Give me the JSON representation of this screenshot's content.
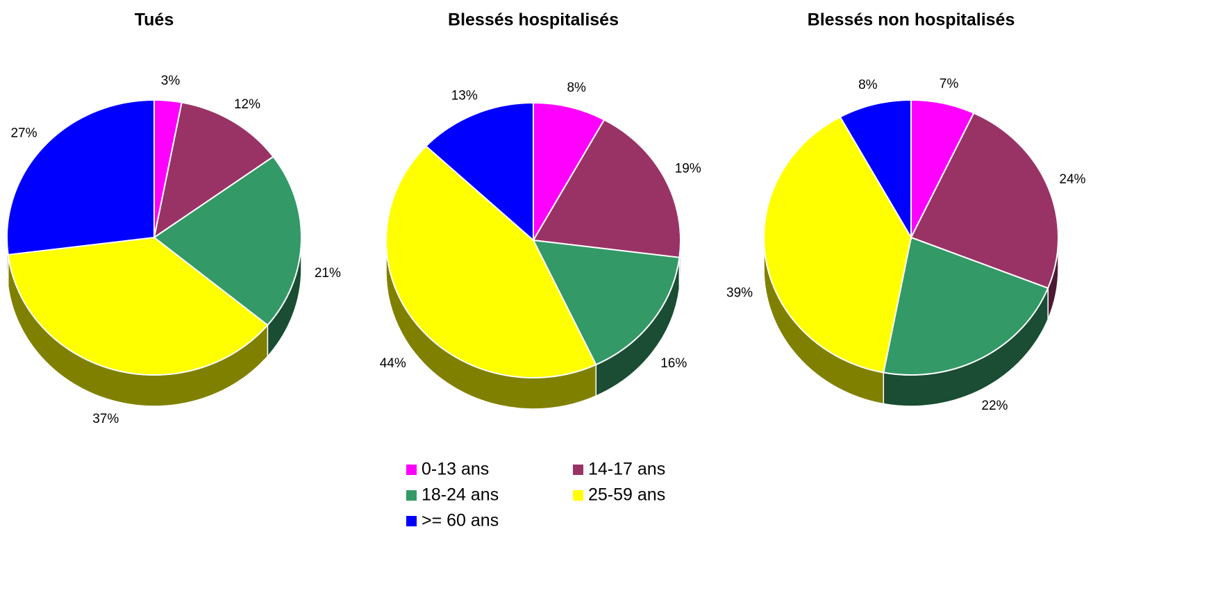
{
  "legend": {
    "categories": [
      "0-13 ans",
      "14-17 ans",
      "18-24 ans",
      "25-59 ans",
      ">= 60 ans"
    ],
    "colors": [
      "#ff00ff",
      "#993366",
      "#339966",
      "#ffff00",
      "#0000ff"
    ]
  },
  "chart_data": [
    {
      "type": "pie",
      "title": "Tués",
      "values": [
        3,
        12,
        21,
        37,
        27
      ],
      "value_labels": [
        "3%",
        "12%",
        "21%",
        "37%",
        "27%"
      ]
    },
    {
      "type": "pie",
      "title": "Blessés hospitalisés",
      "values": [
        8,
        19,
        16,
        44,
        13
      ],
      "value_labels": [
        "8%",
        "19%",
        "16%",
        "44%",
        "13%"
      ]
    },
    {
      "type": "pie",
      "title": "Blessés non hospitalisés",
      "values": [
        7,
        24,
        22,
        39,
        8
      ],
      "value_labels": [
        "7%",
        "24%",
        "22%",
        "39%",
        "8%"
      ]
    }
  ]
}
